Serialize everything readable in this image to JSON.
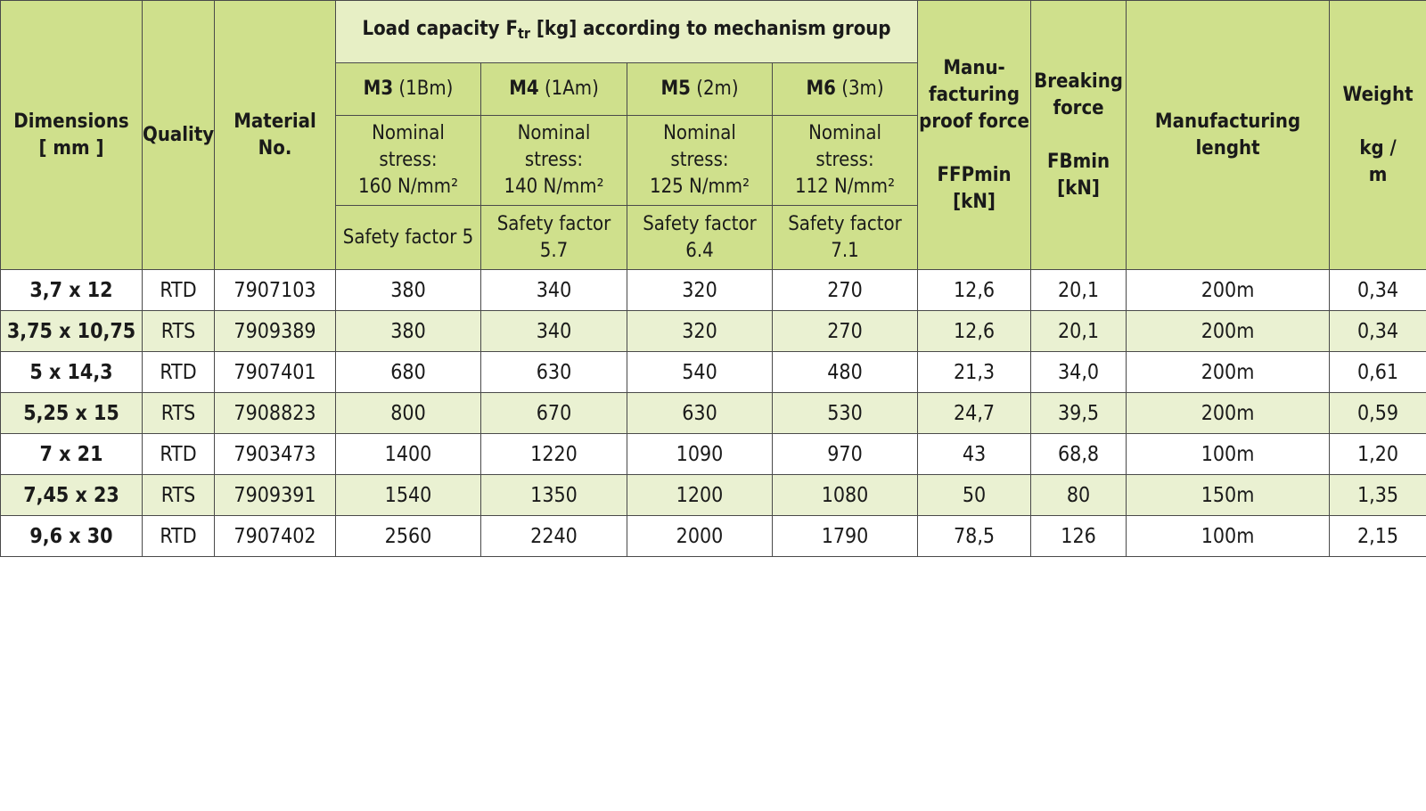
{
  "headers": {
    "dimensions": [
      "Dimensions",
      "[ mm ]"
    ],
    "quality": "Quality",
    "material": [
      "Material",
      "No."
    ],
    "load_prefix": "Load capacity F",
    "load_sub": "tr",
    "load_suffix": " [kg] according to mechanism group",
    "groups": [
      {
        "code": "M3",
        "note": " (1Bm)",
        "stress": [
          "Nominal",
          "stress:",
          "160 N/mm²"
        ],
        "safety": "Safety factor 5"
      },
      {
        "code": "M4",
        "note": " (1Am)",
        "stress": [
          "Nominal",
          "stress:",
          "140 N/mm²"
        ],
        "safety": "Safety factor 5.7"
      },
      {
        "code": "M5",
        "note": " (2m)",
        "stress": [
          "Nominal",
          "stress:",
          "125 N/mm²"
        ],
        "safety": "Safety factor 6.4"
      },
      {
        "code": "M6",
        "note": " (3m)",
        "stress": [
          "Nominal",
          "stress:",
          "112 N/mm²"
        ],
        "safety": "Safety factor 7.1"
      }
    ],
    "proof_force": [
      "Manu-",
      "facturing",
      "proof force",
      "",
      "FFPmin",
      "[kN]"
    ],
    "breaking_force": [
      "Breaking",
      "force",
      "",
      "FBmin",
      "[kN]"
    ],
    "length": [
      "Manufacturing",
      "lenght"
    ],
    "weight": [
      "Weight",
      "",
      "kg /",
      "m"
    ]
  },
  "rows": [
    {
      "dim": "3,7 x 12",
      "quality": "RTD",
      "material": "7907103",
      "m3": "380",
      "m4": "340",
      "m5": "320",
      "m6": "270",
      "proof": "12,6",
      "breaking": "20,1",
      "length": "200m",
      "weight": "0,34"
    },
    {
      "dim": "3,75 x 10,75",
      "quality": "RTS",
      "material": "7909389",
      "m3": "380",
      "m4": "340",
      "m5": "320",
      "m6": "270",
      "proof": "12,6",
      "breaking": "20,1",
      "length": "200m",
      "weight": "0,34"
    },
    {
      "dim": "5 x 14,3",
      "quality": "RTD",
      "material": "7907401",
      "m3": "680",
      "m4": "630",
      "m5": "540",
      "m6": "480",
      "proof": "21,3",
      "breaking": "34,0",
      "length": "200m",
      "weight": "0,61"
    },
    {
      "dim": "5,25 x 15",
      "quality": "RTS",
      "material": "7908823",
      "m3": "800",
      "m4": "670",
      "m5": "630",
      "m6": "530",
      "proof": "24,7",
      "breaking": "39,5",
      "length": "200m",
      "weight": "0,59"
    },
    {
      "dim": "7 x 21",
      "quality": "RTD",
      "material": "7903473",
      "m3": "1400",
      "m4": "1220",
      "m5": "1090",
      "m6": "970",
      "proof": "43",
      "breaking": "68,8",
      "length": "100m",
      "weight": "1,20"
    },
    {
      "dim": "7,45 x 23",
      "quality": "RTS",
      "material": "7909391",
      "m3": "1540",
      "m4": "1350",
      "m5": "1200",
      "m6": "1080",
      "proof": "50",
      "breaking": "80",
      "length": "150m",
      "weight": "1,35"
    },
    {
      "dim": "9,6 x 30",
      "quality": "RTD",
      "material": "7907402",
      "m3": "2560",
      "m4": "2240",
      "m5": "2000",
      "m6": "1790",
      "proof": "78,5",
      "breaking": "126",
      "length": "100m",
      "weight": "2,15"
    }
  ],
  "colors": {
    "header_green": "#cfe08c",
    "row_alt": "#eaf1d2",
    "border": "#4a4a4a"
  }
}
